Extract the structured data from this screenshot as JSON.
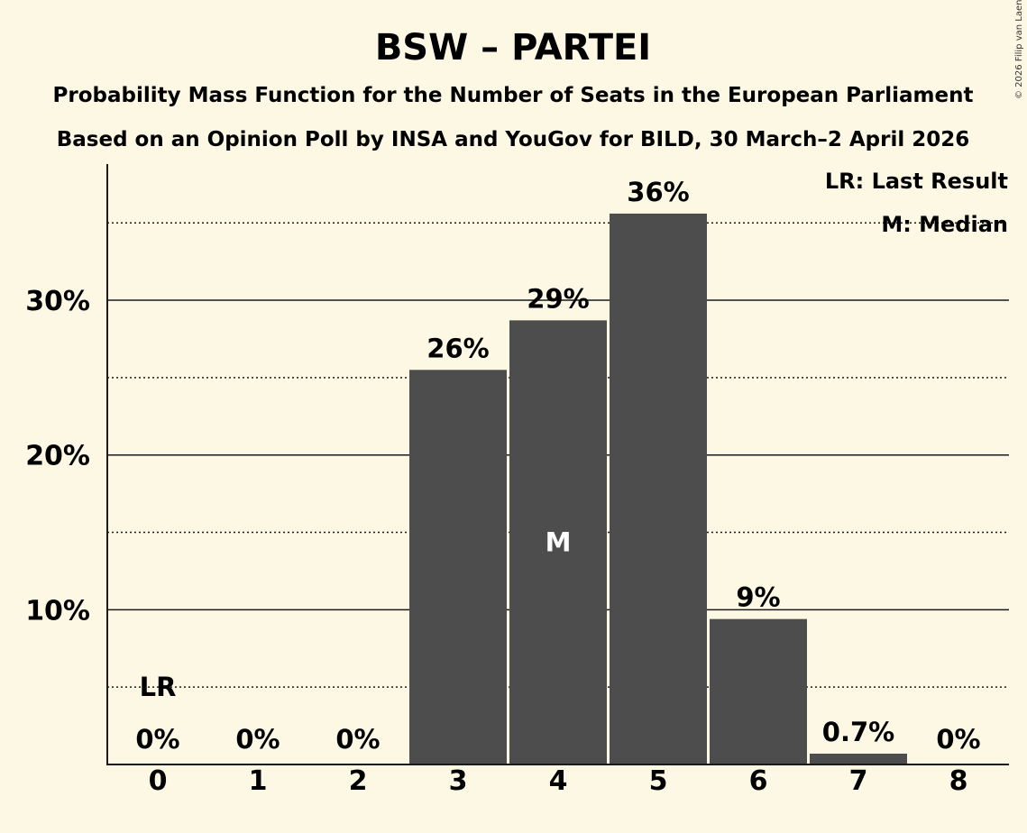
{
  "chart_data": {
    "type": "bar",
    "title": "BSW – PARTEI",
    "subtitle": "Probability Mass Function for the Number of Seats in the European Parliament",
    "subtitle2": "Based on an Opinion Poll by INSA and YouGov for BILD, 30 March–2 April 2026",
    "categories": [
      "0",
      "1",
      "2",
      "3",
      "4",
      "5",
      "6",
      "7",
      "8"
    ],
    "values": [
      0,
      0,
      0,
      25.5,
      28.7,
      35.6,
      9.4,
      0.7,
      0
    ],
    "data_labels": [
      "0%",
      "0%",
      "0%",
      "26%",
      "29%",
      "36%",
      "9%",
      "0.7%",
      "0%"
    ],
    "ylim": [
      0,
      38.8
    ],
    "y_major_ticks": [
      10,
      20,
      30
    ],
    "y_tick_labels": [
      "10%",
      "20%",
      "30%"
    ],
    "y_minor_gridlines": [
      5,
      15,
      25,
      35
    ],
    "last_result_index": 0,
    "last_result_marker": "LR",
    "median_index": 4,
    "median_marker": "M",
    "legend_position": "top-right",
    "legend": {
      "last_result": "LR: Last Result",
      "median": "M: Median"
    },
    "bar_color": "#4d4d4d",
    "background_color": "#fdf8e4",
    "copyright": "© 2026 Filip van Laenen"
  }
}
